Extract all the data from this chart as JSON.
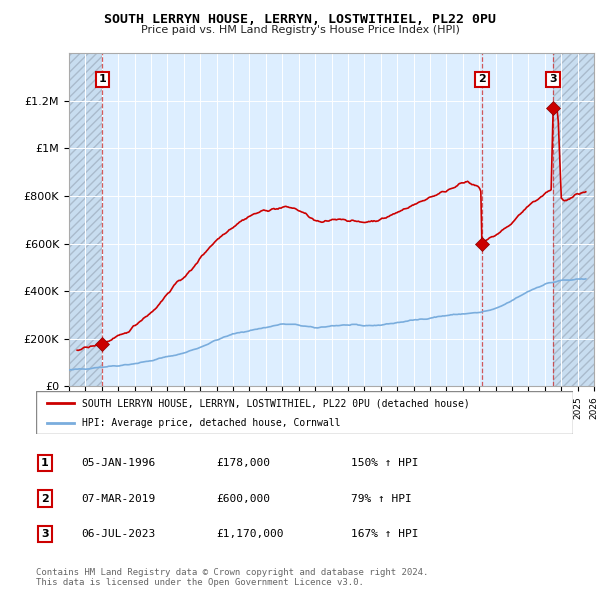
{
  "title": "SOUTH LERRYN HOUSE, LERRYN, LOSTWITHIEL, PL22 0PU",
  "subtitle": "Price paid vs. HM Land Registry's House Price Index (HPI)",
  "ylim": [
    0,
    1400000
  ],
  "yticks": [
    0,
    200000,
    400000,
    600000,
    800000,
    1000000,
    1200000
  ],
  "ytick_labels": [
    "£0",
    "£200K",
    "£400K",
    "£600K",
    "£800K",
    "£1M",
    "£1.2M"
  ],
  "xlim_start": 1994.0,
  "xlim_end": 2026.0,
  "red_line_color": "#cc0000",
  "blue_line_color": "#7aaddd",
  "chart_bg_color": "#ddeeff",
  "sale_points": [
    {
      "year": 1996.04,
      "price": 178000,
      "label": "1"
    },
    {
      "year": 2019.17,
      "price": 600000,
      "label": "2"
    },
    {
      "year": 2023.5,
      "price": 1170000,
      "label": "3"
    }
  ],
  "table_rows": [
    {
      "num": "1",
      "date": "05-JAN-1996",
      "price": "£178,000",
      "hpi": "150% ↑ HPI"
    },
    {
      "num": "2",
      "date": "07-MAR-2019",
      "price": "£600,000",
      "hpi": "79% ↑ HPI"
    },
    {
      "num": "3",
      "date": "06-JUL-2023",
      "price": "£1,170,000",
      "hpi": "167% ↑ HPI"
    }
  ],
  "legend_red_label": "SOUTH LERRYN HOUSE, LERRYN, LOSTWITHIEL, PL22 0PU (detached house)",
  "legend_blue_label": "HPI: Average price, detached house, Cornwall",
  "footer": "Contains HM Land Registry data © Crown copyright and database right 2024.\nThis data is licensed under the Open Government Licence v3.0."
}
